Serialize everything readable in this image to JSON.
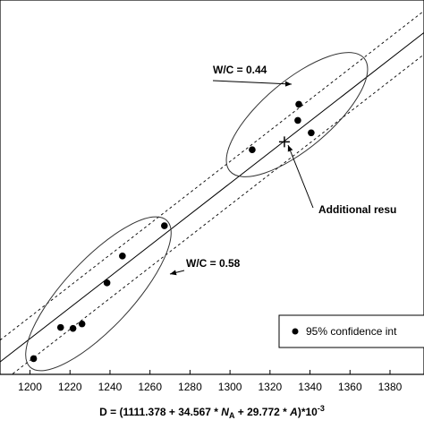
{
  "chart_data": {
    "type": "scatter",
    "x_label": [
      "D = (1111.378 + 34.567 * ",
      "N",
      "A",
      " + 29.772 * ",
      "A",
      ")*10",
      "-3"
    ],
    "xlim": [
      1185,
      1397
    ],
    "ylim": [
      1177,
      1418
    ],
    "xticks": [
      1200,
      1220,
      1240,
      1260,
      1280,
      1300,
      1320,
      1340,
      1360,
      1380
    ],
    "series": [
      {
        "name": "95% confidence int",
        "color": "#000000",
        "x": [
          1201.8,
          1215.3,
          1221.5,
          1226.0,
          1238.5,
          1246.2,
          1267.2,
          1311.1,
          1334.4,
          1333.9,
          1340.6
        ],
        "values": [
          1187.1,
          1207.2,
          1206.6,
          1209.5,
          1235.9,
          1253.2,
          1272.7,
          1321.6,
          1350.9,
          1340.5,
          1332.5
        ]
      }
    ],
    "additional_point": {
      "x": 1327.2,
      "y": 1326.7
    },
    "reference_lines": [
      {
        "style": "solid",
        "x": [
          1185,
          1397
        ],
        "y": [
          1185,
          1397
        ]
      },
      {
        "style": "dashed",
        "x": [
          1185,
          1397
        ],
        "y": [
          1199,
          1411
        ]
      },
      {
        "style": "dashed",
        "x": [
          1185,
          1397
        ],
        "y": [
          1171,
          1383
        ]
      }
    ],
    "annotations": [
      "W/C = 0.44",
      "W/C = 0.58",
      "Additional resu"
    ],
    "legend": "bottom-right"
  }
}
